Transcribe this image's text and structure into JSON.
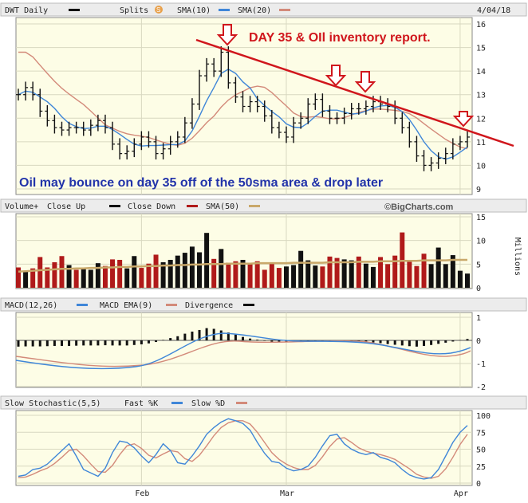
{
  "header": {
    "ticker": "DWT Daily",
    "splits": "Splits",
    "sma10": "SMA(10)",
    "sma20": "SMA(20)",
    "date": "4/04/18"
  },
  "colors": {
    "panel_bg": "#fdfde6",
    "header_bg": "#ececec",
    "sma10": "#3f86d8",
    "sma20": "#d38a7a",
    "down": "#b01a1a",
    "up": "#111111",
    "sma50": "#c9a86a",
    "annotation_red": "#d0161c",
    "annotation_blue": "#2233aa"
  },
  "annotations": {
    "top": "DAY 35 & OIl inventory report.",
    "bottom": "Oil may bounce on day 35 off of the 50sma area & drop later"
  },
  "watermark": "©BigCharts.com",
  "volume_header": {
    "vol": "Volume+",
    "up": "Close Up",
    "down": "Close Down",
    "sma": "SMA(50)",
    "unit": "Millions"
  },
  "macd_header": {
    "macd": "MACD(12,26)",
    "ema": "MACD EMA(9)",
    "div": "Divergence"
  },
  "stoch_header": {
    "title": "Slow Stochastic(5,5)",
    "fast": "Fast %K",
    "slow": "Slow %D"
  },
  "chart_data": [
    {
      "type": "line",
      "subtype": "ohlc",
      "ylim": [
        9,
        16
      ],
      "y_ticks": [
        "9",
        "10",
        "11",
        "12",
        "13",
        "14",
        "15",
        "16"
      ],
      "x_ticks": [
        "Feb",
        "Mar",
        "Apr"
      ],
      "close": [
        13.0,
        13.3,
        13.0,
        12.3,
        11.9,
        11.6,
        11.5,
        11.6,
        11.6,
        11.5,
        11.7,
        11.9,
        11.6,
        10.9,
        10.5,
        10.6,
        10.9,
        11.2,
        11.0,
        10.5,
        10.7,
        11.0,
        11.2,
        11.8,
        12.6,
        13.8,
        14.3,
        14.0,
        14.8,
        13.5,
        12.9,
        12.5,
        12.7,
        12.5,
        12.1,
        11.6,
        11.4,
        11.2,
        11.8,
        12.0,
        12.6,
        12.8,
        12.3,
        12.0,
        12.0,
        12.2,
        12.4,
        12.4,
        12.5,
        12.7,
        12.6,
        12.5,
        12.0,
        11.6,
        11.0,
        10.4,
        10.0,
        10.1,
        10.3,
        10.5,
        10.9,
        11.0,
        11.2
      ]
    },
    {
      "type": "bar",
      "ylim": [
        0,
        15
      ],
      "y_ticks": [
        "0",
        "5",
        "10",
        "15"
      ],
      "values": [
        4.3,
        3.5,
        4.1,
        6.5,
        4.3,
        5.4,
        6.7,
        4.8,
        3.8,
        4.2,
        3.8,
        5.2,
        4.6,
        6.0,
        5.9,
        4.1,
        6.7,
        4.2,
        5.1,
        7.0,
        5.4,
        5.9,
        6.8,
        7.4,
        8.7,
        7.5,
        11.6,
        6.1,
        8.2,
        5.3,
        5.6,
        5.9,
        5.2,
        5.6,
        3.8,
        5.1,
        4.2,
        4.5,
        4.8,
        7.8,
        5.8,
        4.7,
        4.5,
        6.6,
        6.3,
        6.0,
        5.8,
        6.6,
        5.1,
        4.4,
        6.5,
        5.0,
        6.8,
        11.7,
        5.7,
        4.6,
        7.2,
        5.0,
        8.5,
        5.0,
        6.9,
        3.6,
        3.0
      ],
      "up": [
        0,
        1,
        0,
        0,
        0,
        0,
        0,
        1,
        0,
        1,
        1,
        1,
        0,
        0,
        0,
        1,
        1,
        0,
        0,
        0,
        1,
        1,
        1,
        1,
        1,
        1,
        1,
        0,
        1,
        0,
        0,
        1,
        0,
        0,
        0,
        0,
        0,
        1,
        1,
        1,
        1,
        1,
        0,
        0,
        0,
        1,
        1,
        0,
        1,
        1,
        0,
        0,
        0,
        0,
        0,
        0,
        0,
        1,
        1,
        1,
        1,
        1,
        1
      ],
      "sma50": [
        3.4,
        3.5,
        3.6,
        3.7,
        3.8,
        3.9,
        4.0,
        4.0,
        4.1,
        4.1,
        4.2,
        4.2,
        4.3,
        4.3,
        4.4,
        4.4,
        4.5,
        4.5,
        4.6,
        4.6,
        4.7,
        4.7,
        4.8,
        4.8,
        4.9,
        4.9,
        5.0,
        5.0,
        5.0,
        5.1,
        5.1,
        5.1,
        5.1,
        5.2,
        5.2,
        5.2,
        5.2,
        5.2,
        5.3,
        5.3,
        5.3,
        5.3,
        5.3,
        5.4,
        5.4,
        5.4,
        5.4,
        5.5,
        5.5,
        5.5,
        5.6,
        5.6,
        5.6,
        5.7,
        5.7,
        5.7,
        5.8,
        5.8,
        5.8,
        5.8,
        5.9,
        5.9,
        5.9
      ]
    },
    {
      "type": "line",
      "name": "MACD",
      "ylim": [
        -2,
        1
      ],
      "y_ticks": [
        "-2",
        "-1",
        "0",
        "1"
      ],
      "histogram": [
        -0.27,
        -0.26,
        -0.26,
        -0.26,
        -0.25,
        -0.24,
        -0.24,
        -0.24,
        -0.23,
        -0.22,
        -0.22,
        -0.22,
        -0.21,
        -0.22,
        -0.22,
        -0.22,
        -0.2,
        -0.17,
        -0.13,
        -0.07,
        0.02,
        0.1,
        0.18,
        0.29,
        0.38,
        0.45,
        0.53,
        0.5,
        0.43,
        0.34,
        0.25,
        0.15,
        0.08,
        0.03,
        -0.02,
        -0.06,
        -0.07,
        -0.06,
        -0.04,
        -0.03,
        -0.04,
        -0.05,
        -0.04,
        -0.03,
        -0.02,
        -0.02,
        -0.03,
        -0.04,
        -0.06,
        -0.09,
        -0.12,
        -0.16,
        -0.19,
        -0.22,
        -0.25,
        -0.27,
        -0.24,
        -0.2,
        -0.15,
        -0.1,
        -0.05,
        0.01,
        0.06
      ]
    },
    {
      "type": "line",
      "name": "Slow Stochastic",
      "ylim": [
        0,
        100
      ],
      "y_ticks": [
        "0",
        "25",
        "50",
        "75",
        "100"
      ],
      "fast": [
        10,
        12,
        20,
        22,
        28,
        38,
        48,
        58,
        40,
        20,
        15,
        10,
        22,
        45,
        62,
        60,
        52,
        40,
        30,
        42,
        58,
        48,
        30,
        28,
        40,
        55,
        72,
        82,
        90,
        95,
        92,
        88,
        78,
        60,
        44,
        32,
        30,
        22,
        18,
        20,
        25,
        38,
        55,
        70,
        72,
        58,
        50,
        45,
        42,
        45,
        38,
        35,
        30,
        20,
        12,
        8,
        6,
        8,
        20,
        40,
        60,
        75,
        85
      ],
      "slow": [
        8,
        9,
        13,
        18,
        22,
        29,
        38,
        48,
        50,
        40,
        28,
        17,
        16,
        26,
        42,
        55,
        58,
        51,
        41,
        37,
        43,
        48,
        46,
        36,
        32,
        41,
        55,
        70,
        82,
        89,
        92,
        92,
        87,
        75,
        60,
        45,
        35,
        28,
        23,
        20,
        20,
        26,
        39,
        54,
        65,
        67,
        60,
        52,
        47,
        44,
        42,
        39,
        35,
        28,
        21,
        13,
        9,
        7,
        10,
        21,
        38,
        57,
        72
      ]
    }
  ]
}
